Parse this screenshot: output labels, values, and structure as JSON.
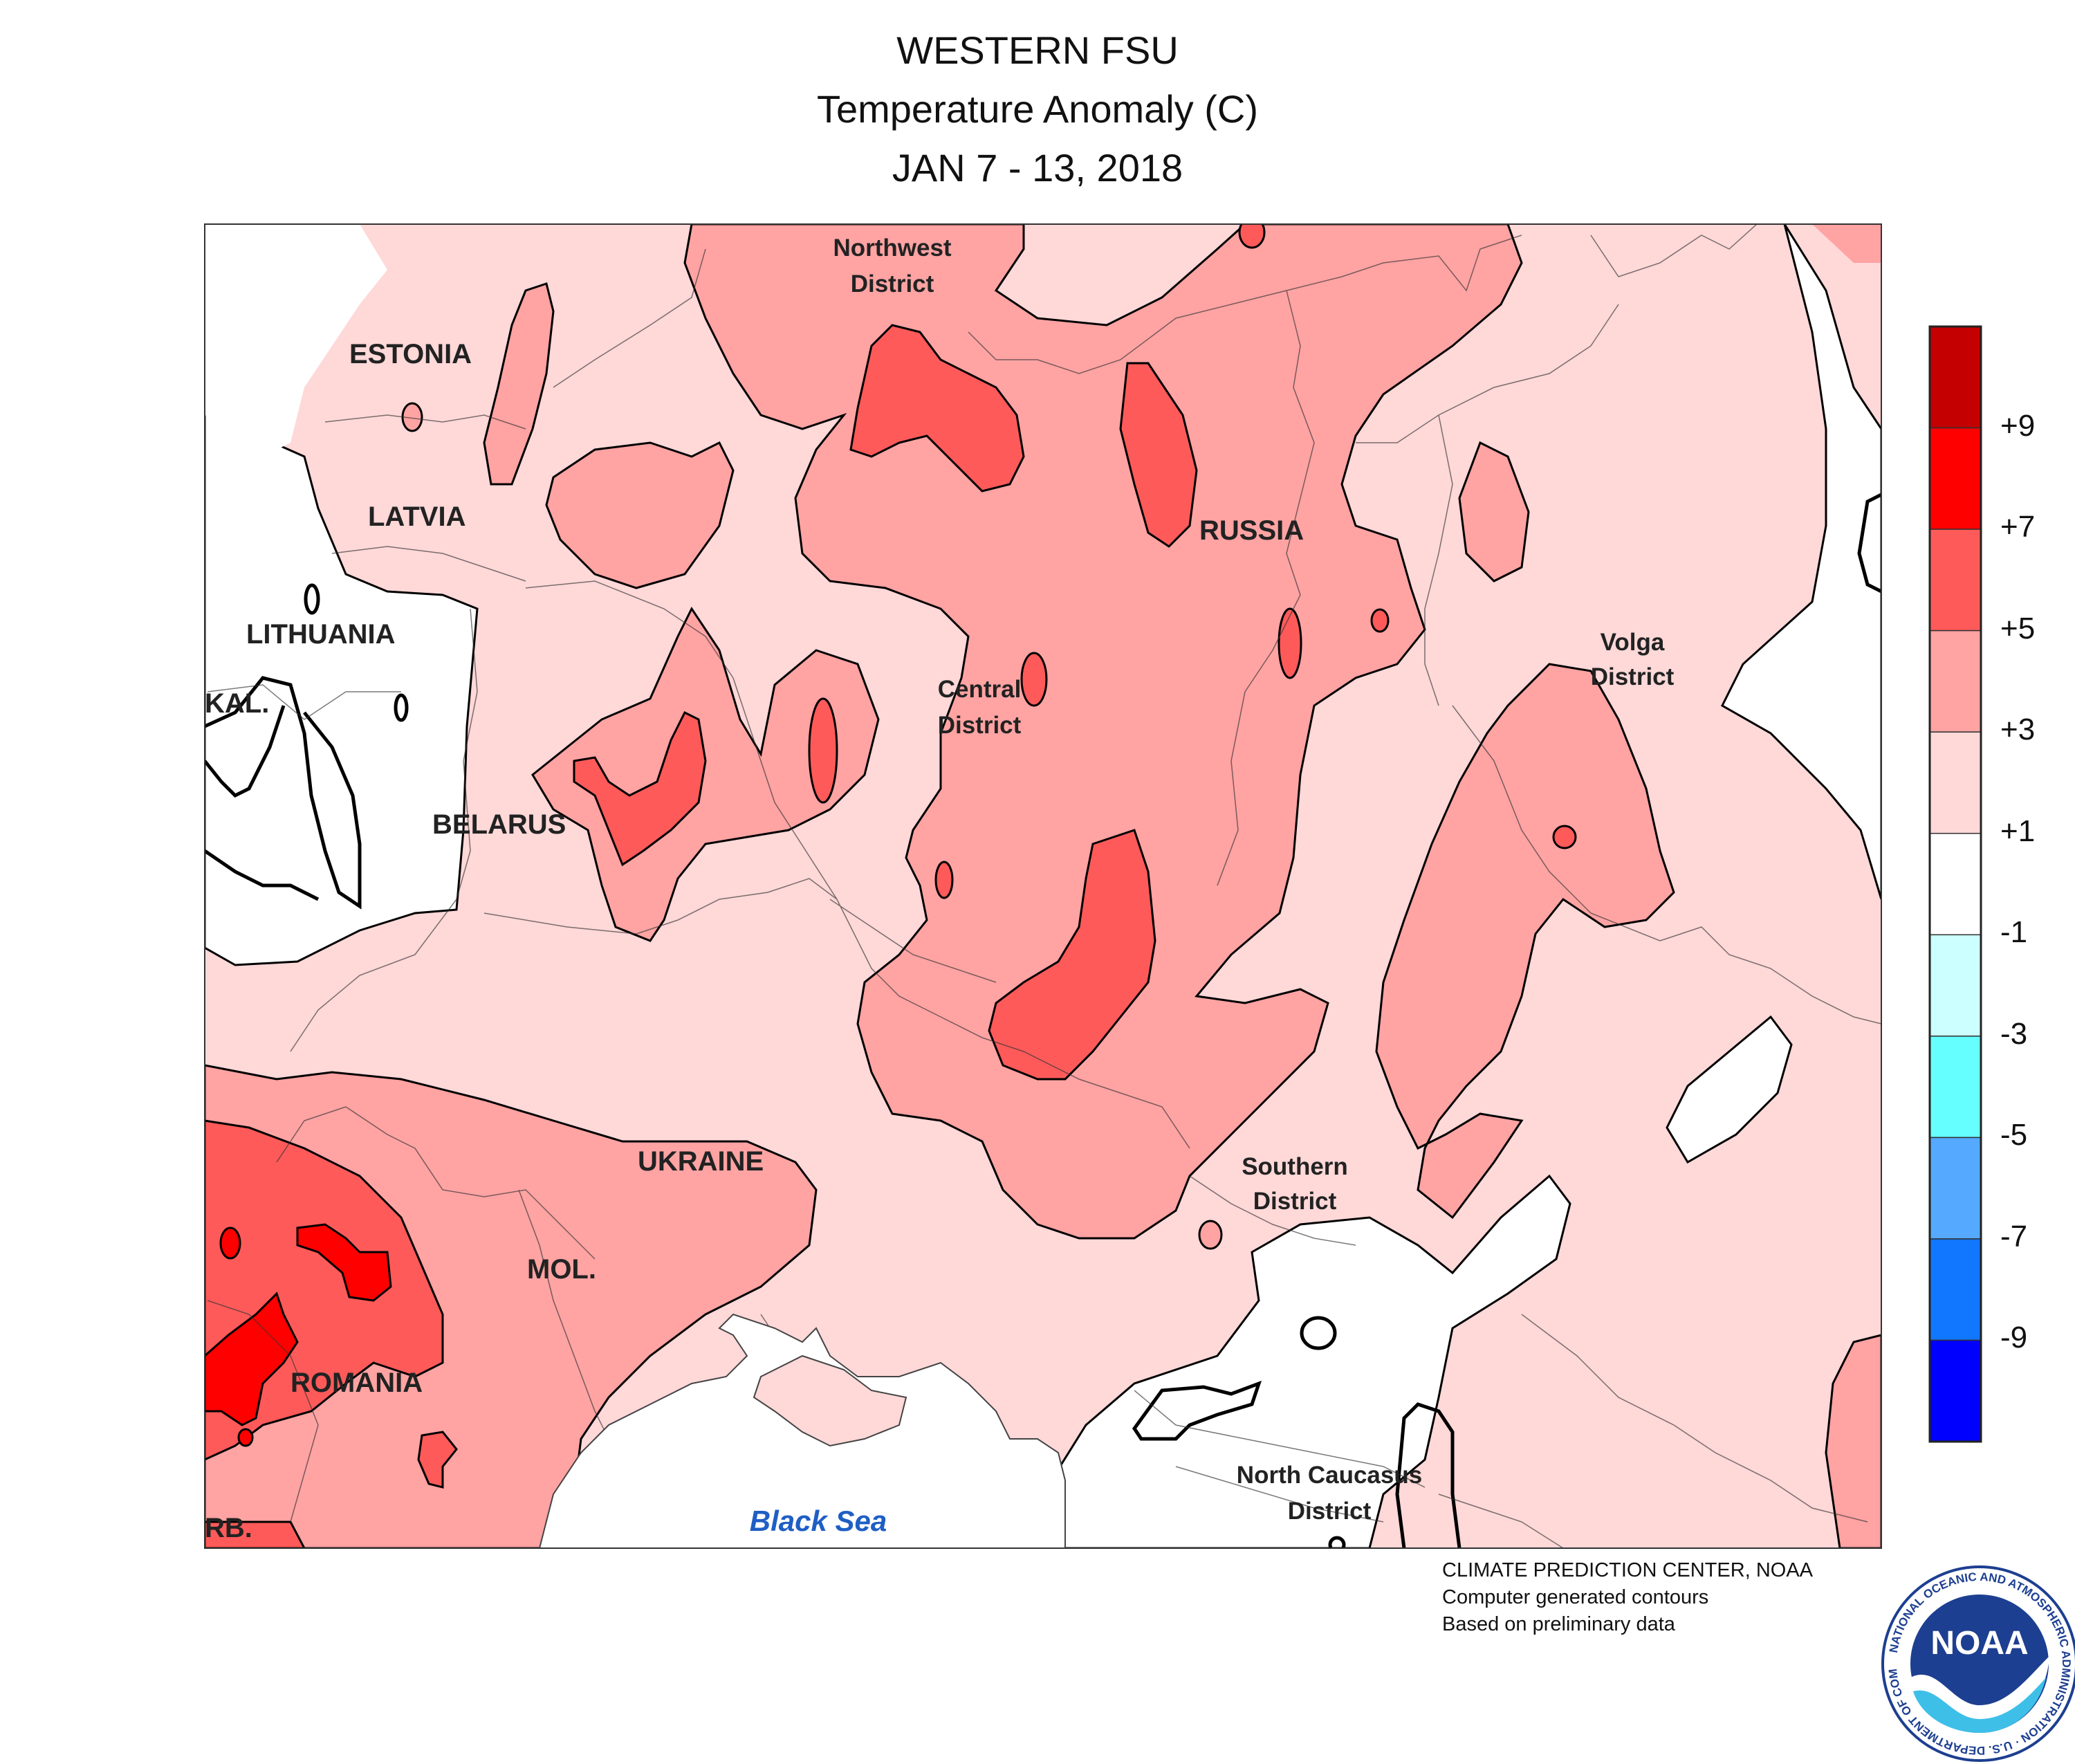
{
  "title": {
    "line1": "WESTERN FSU",
    "line2": "Temperature Anomaly (C)",
    "line3": "JAN 7 - 13, 2018"
  },
  "map_labels": {
    "estonia": "ESTONIA",
    "latvia": "LATVIA",
    "lithuania": "LITHUANIA",
    "kal": "KAL.",
    "belarus": "BELARUS",
    "ukraine": "UKRAINE",
    "moldova": "MOL.",
    "romania": "ROMANIA",
    "serbia": "RB.",
    "russia": "RUSSIA",
    "northwest_1": "Northwest",
    "northwest_2": "District",
    "central_1": "Central",
    "central_2": "District",
    "volga_1": "Volga",
    "volga_2": "District",
    "southern_1": "Southern",
    "southern_2": "District",
    "ncaucasus_1": "North Caucasus",
    "ncaucasus_2": "District",
    "black_sea": "Black Sea"
  },
  "legend": {
    "labels": [
      "+9",
      "+7",
      "+5",
      "+3",
      "+1",
      "-1",
      "-3",
      "-5",
      "-7",
      "-9"
    ],
    "colors": [
      "#c40000",
      "#ff0000",
      "#ff5a5a",
      "#ffa3a3",
      "#ffd8d8",
      "#ffffff",
      "#ccffff",
      "#66ffff",
      "#55aaff",
      "#1177ff",
      "#0000ff"
    ]
  },
  "colors": {
    "anom_1_3": "#ffd8d8",
    "anom_3_5": "#ffa3a3",
    "anom_5_7": "#ff5a5a",
    "anom_7_9": "#ff0000",
    "anom_neutral": "#ffffff",
    "sea_label": "#1f5fc4"
  },
  "credit": {
    "line1": "CLIMATE PREDICTION CENTER, NOAA",
    "line2": "Computer generated contours",
    "line3": "Based on preliminary data"
  },
  "logo": {
    "text": "NOAA",
    "ring_text": "NATIONAL OCEANIC AND ATMOSPHERIC ADMINISTRATION · U.S. DEPARTMENT OF COMMERCE"
  }
}
